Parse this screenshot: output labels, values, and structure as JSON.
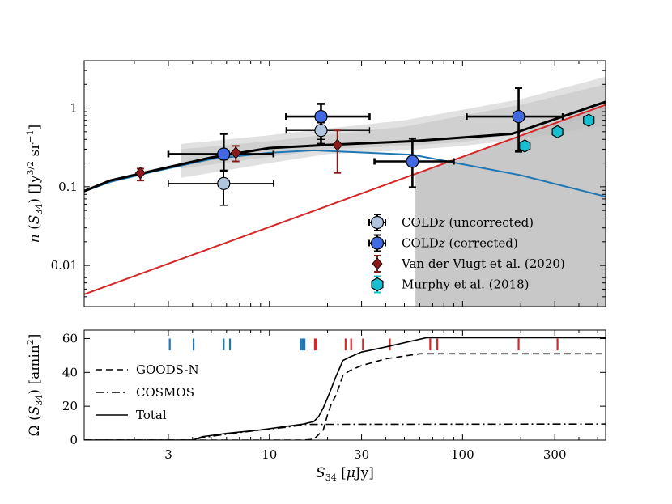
{
  "chart_data": [
    {
      "type": "scatter",
      "ylabel": "n (S34) [Jy^3/2 sr^-1]",
      "xlim": [
        1.1,
        550
      ],
      "ylim": [
        0.003,
        4
      ],
      "xscale": "log",
      "yscale": "log",
      "yticks": [
        {
          "value": 1,
          "label": "1"
        },
        {
          "value": 0.1,
          "label": "0.1"
        },
        {
          "value": 0.01,
          "label": "0.01"
        }
      ],
      "shaded_region": {
        "x_from": 57,
        "y_upper_line": "red"
      },
      "lines": [
        {
          "name": "black-model",
          "color": "#000000",
          "width": 3,
          "x": [
            1.1,
            1.5,
            2.5,
            5,
            10,
            20,
            55,
            180,
            550
          ],
          "y": [
            0.088,
            0.12,
            0.16,
            0.235,
            0.31,
            0.34,
            0.38,
            0.47,
            1.2
          ]
        },
        {
          "name": "blue-model",
          "color": "#1f77b4",
          "width": 2,
          "x": [
            1.1,
            1.5,
            2.5,
            5,
            10,
            17,
            55,
            200,
            550
          ],
          "y": [
            0.087,
            0.115,
            0.155,
            0.225,
            0.27,
            0.29,
            0.255,
            0.14,
            0.075
          ]
        },
        {
          "name": "red-model",
          "color": "#d62728",
          "width": 2,
          "x": [
            1.1,
            550
          ],
          "y": [
            0.0043,
            1.1
          ]
        }
      ],
      "bands": [
        {
          "color": "#bdbdbd",
          "opacity": 0.45,
          "x": [
            3.5,
            10,
            20,
            50,
            100,
            200,
            550
          ],
          "lo": [
            0.13,
            0.2,
            0.26,
            0.29,
            0.33,
            0.4,
            0.6
          ],
          "hi": [
            0.35,
            0.45,
            0.55,
            0.7,
            0.95,
            1.3,
            2.5
          ]
        },
        {
          "color": "#bdbdbd",
          "opacity": 0.45,
          "x": [
            3.5,
            10,
            20,
            50,
            100,
            200,
            550
          ],
          "lo": [
            0.17,
            0.24,
            0.3,
            0.33,
            0.37,
            0.48,
            0.8
          ],
          "hi": [
            0.3,
            0.38,
            0.46,
            0.58,
            0.8,
            1.1,
            2.0
          ]
        }
      ],
      "series": [
        {
          "name": "COLDz (uncorrected)",
          "label_main": "COLD",
          "label_z": "z",
          "label_tail": " (uncorrected)",
          "marker": "circle",
          "fill": "#b0c4de",
          "ecolor": "#000000",
          "points": [
            {
              "x": 5.8,
              "y": 0.11,
              "xlo": 3.0,
              "xhi": 10.5,
              "ylo": 0.058,
              "yhi": 0.22
            },
            {
              "x": 18.5,
              "y": 0.52,
              "xlo": 12.2,
              "xhi": 33,
              "ylo": 0.4,
              "yhi": 0.65
            }
          ]
        },
        {
          "name": "COLDz (corrected)",
          "label_main": "COLD",
          "label_z": "z",
          "label_tail": " (corrected)",
          "marker": "circle",
          "fill": "#4169e1",
          "ecolor": "#000000",
          "points": [
            {
              "x": 5.8,
              "y": 0.26,
              "xlo": 3.0,
              "xhi": 10.5,
              "ylo": 0.16,
              "yhi": 0.47
            },
            {
              "x": 18.5,
              "y": 0.78,
              "xlo": 12.2,
              "xhi": 33,
              "ylo": 0.35,
              "yhi": 1.13
            },
            {
              "x": 55,
              "y": 0.21,
              "xlo": 35,
              "xhi": 90,
              "ylo": 0.098,
              "yhi": 0.41
            },
            {
              "x": 195,
              "y": 0.78,
              "xlo": 105,
              "xhi": 330,
              "ylo": 0.28,
              "yhi": 1.8
            }
          ]
        },
        {
          "name": "Van der Vlugt et al. (2020)",
          "marker": "diamond",
          "fill": "#8b1a1a",
          "ecolor": "#8b1a1a",
          "points": [
            {
              "x": 2.15,
              "y": 0.15,
              "ylo": 0.12,
              "yhi": 0.17
            },
            {
              "x": 6.7,
              "y": 0.27,
              "ylo": 0.21,
              "yhi": 0.33
            },
            {
              "x": 22.5,
              "y": 0.34,
              "ylo": 0.15,
              "yhi": 0.52
            }
          ]
        },
        {
          "name": "Murphy et al. (2018)",
          "marker": "hexagon",
          "fill": "#17becf",
          "ecolor": "#17becf",
          "points": [
            {
              "x": 210,
              "y": 0.33
            },
            {
              "x": 310,
              "y": 0.5
            },
            {
              "x": 450,
              "y": 0.7
            }
          ]
        }
      ]
    },
    {
      "type": "line",
      "xlabel": "S34 [μJy]",
      "ylabel": "Ω (S34) [amin²]",
      "xlim": [
        1.1,
        550
      ],
      "ylim": [
        0,
        65
      ],
      "xscale": "log",
      "xticks": [
        {
          "value": 3,
          "label": "3"
        },
        {
          "value": 10,
          "label": "10"
        },
        {
          "value": 30,
          "label": "30"
        },
        {
          "value": 100,
          "label": "100"
        },
        {
          "value": 300,
          "label": "300"
        }
      ],
      "yticks": [
        {
          "value": 0,
          "label": "0"
        },
        {
          "value": 20,
          "label": "20"
        },
        {
          "value": 40,
          "label": "40"
        },
        {
          "value": 60,
          "label": "60"
        }
      ],
      "series": [
        {
          "name": "GOODS-N",
          "dash": "8,5",
          "x": [
            1.1,
            15,
            17,
            19,
            20,
            21,
            22,
            23,
            24,
            26,
            30,
            40,
            60,
            550
          ],
          "y": [
            0,
            0,
            0.5,
            6,
            15,
            22,
            26,
            32,
            38,
            41,
            44,
            48,
            51,
            51
          ]
        },
        {
          "name": "COSMOS",
          "dash": "10,4,2,4",
          "x": [
            1.1,
            4.0,
            4.5,
            6,
            9,
            12,
            14,
            15,
            550
          ],
          "y": [
            0,
            0,
            1.5,
            3.5,
            6,
            7.5,
            8.5,
            9.3,
            9.5
          ]
        },
        {
          "name": "Total",
          "dash": "",
          "x": [
            1.1,
            4.0,
            4.5,
            6,
            9,
            12,
            15,
            17,
            18,
            19,
            20,
            21,
            22,
            23,
            24,
            26,
            30,
            40,
            65,
            550
          ],
          "y": [
            0,
            0,
            2,
            4,
            6,
            8,
            9.5,
            11,
            14,
            19,
            25,
            31,
            37,
            42,
            47,
            49,
            52,
            55,
            60.5,
            60.5
          ]
        }
      ],
      "ticks_blue": [
        3.05,
        4.05,
        5.8,
        6.25,
        14.5,
        14.8,
        15.0,
        15.2
      ],
      "ticks_red": [
        17.2,
        17.5,
        24.8,
        26.5,
        30.5,
        42,
        68,
        74,
        195,
        310
      ],
      "tick_y_range": [
        53,
        60
      ]
    }
  ]
}
